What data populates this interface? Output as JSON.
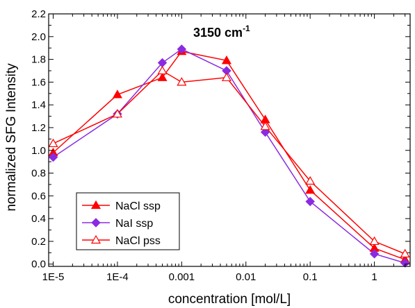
{
  "chart_data": {
    "type": "line",
    "title": "3150 cm",
    "title_superscript": "-1",
    "xlabel": "concentration [mol/L]",
    "ylabel": "normalized SFG Intensity",
    "x_scale": "log",
    "xlim": [
      8.5e-06,
      3.6
    ],
    "ylim": [
      -0.02,
      2.2
    ],
    "x_ticks": [
      {
        "value": 1e-05,
        "label": "1E-5"
      },
      {
        "value": 0.0001,
        "label": "1E-4"
      },
      {
        "value": 0.001,
        "label": "0.001"
      },
      {
        "value": 0.01,
        "label": "0.01"
      },
      {
        "value": 0.1,
        "label": "0.1"
      },
      {
        "value": 1,
        "label": "1"
      }
    ],
    "y_ticks": [
      {
        "value": 0.0,
        "label": "0.0"
      },
      {
        "value": 0.2,
        "label": "0.2"
      },
      {
        "value": 0.4,
        "label": "0.4"
      },
      {
        "value": 0.6,
        "label": "0.6"
      },
      {
        "value": 0.8,
        "label": "0.8"
      },
      {
        "value": 1.0,
        "label": "1.0"
      },
      {
        "value": 1.2,
        "label": "1.2"
      },
      {
        "value": 1.4,
        "label": "1.4"
      },
      {
        "value": 1.6,
        "label": "1.6"
      },
      {
        "value": 1.8,
        "label": "1.8"
      },
      {
        "value": 2.0,
        "label": "2.0"
      },
      {
        "value": 2.2,
        "label": "2.2"
      }
    ],
    "grid": false,
    "legend_position": "bottom-left",
    "series": [
      {
        "name": "NaCl ssp",
        "color": "#ff0000",
        "marker": "triangle-filled",
        "x": [
          1e-05,
          0.0001,
          0.0005,
          0.001,
          0.005,
          0.02,
          0.1,
          1,
          3
        ],
        "y": [
          0.98,
          1.49,
          1.64,
          1.87,
          1.79,
          1.27,
          0.65,
          0.14,
          0.04
        ]
      },
      {
        "name": "NaI ssp",
        "color": "#8a2be2",
        "marker": "diamond-filled",
        "x": [
          1e-05,
          0.0001,
          0.0005,
          0.001,
          0.005,
          0.02,
          0.1,
          1,
          3
        ],
        "y": [
          0.94,
          1.32,
          1.77,
          1.89,
          1.7,
          1.16,
          0.55,
          0.09,
          0.01
        ]
      },
      {
        "name": "NaCl pss",
        "color": "#ff0000",
        "marker": "triangle-open",
        "x": [
          1e-05,
          0.0001,
          0.0005,
          0.001,
          0.005,
          0.02,
          0.1,
          1,
          3
        ],
        "y": [
          1.06,
          1.32,
          1.7,
          1.6,
          1.64,
          1.21,
          0.73,
          0.2,
          0.09
        ]
      }
    ]
  }
}
